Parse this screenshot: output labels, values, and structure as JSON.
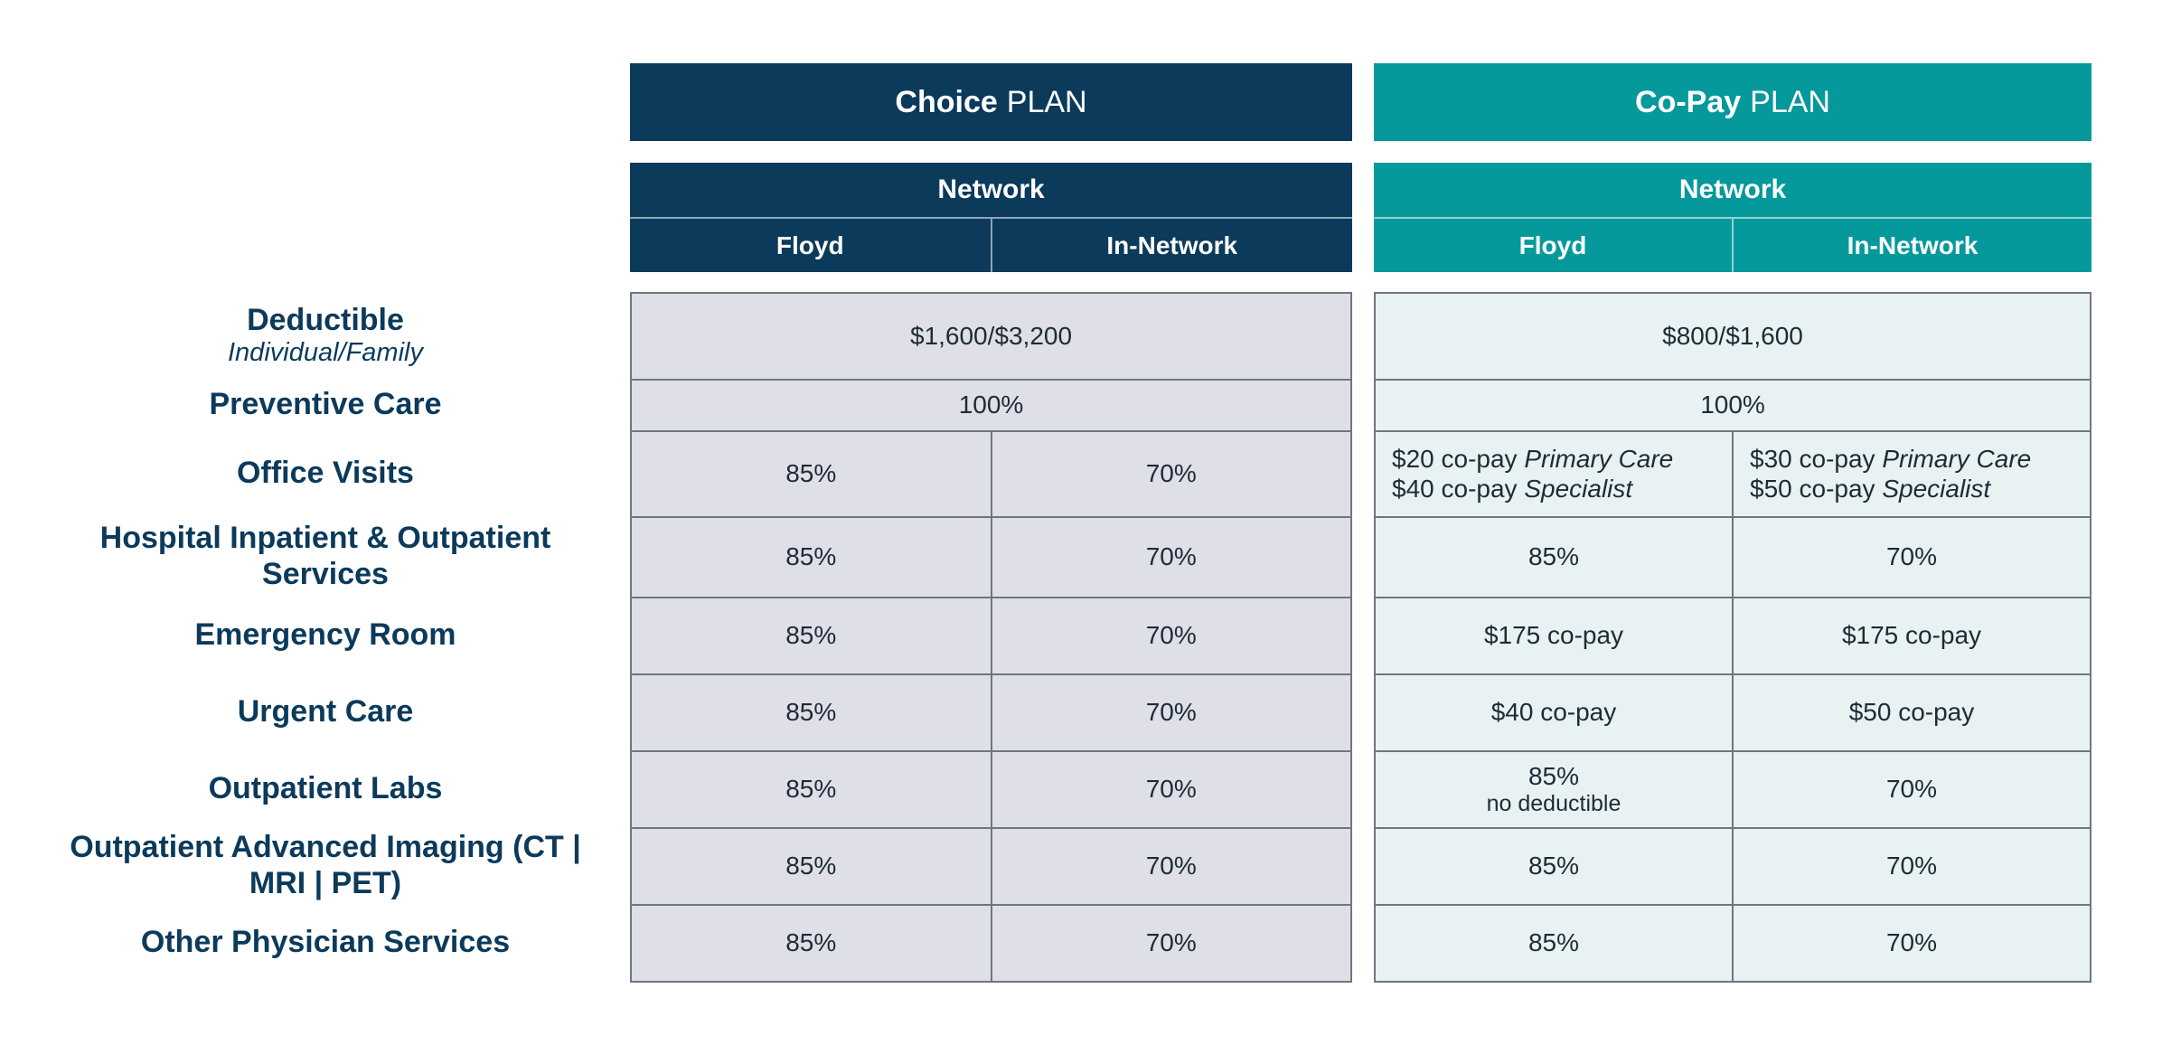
{
  "plans": [
    {
      "name_bold": "Choice",
      "name_light": "PLAN",
      "color": "#0b3a5b",
      "network_label": "Network",
      "columns": [
        "Floyd",
        "In-Network"
      ]
    },
    {
      "name_bold": "Co-Pay",
      "name_light": "PLAN",
      "color": "#05999b",
      "network_label": "Network",
      "columns": [
        "Floyd",
        "In-Network"
      ]
    }
  ],
  "rows": [
    {
      "label": "Deductible",
      "sublabel": "Individual/Family"
    },
    {
      "label": "Preventive Care"
    },
    {
      "label": "Office Visits"
    },
    {
      "label": "Hospital Inpatient & Outpatient Services"
    },
    {
      "label": "Emergency Room"
    },
    {
      "label": "Urgent Care"
    },
    {
      "label": "Outpatient Labs"
    },
    {
      "label": "Outpatient Advanced Imaging (CT | MRI | PET)"
    },
    {
      "label": "Other Physician Services"
    }
  ],
  "choice": {
    "deductible": "$1,600/$3,200",
    "preventive": "100%",
    "office_visits": [
      "85%",
      "70%"
    ],
    "hospital": [
      "85%",
      "70%"
    ],
    "emergency": [
      "85%",
      "70%"
    ],
    "urgent": [
      "85%",
      "70%"
    ],
    "labs": [
      "85%",
      "70%"
    ],
    "imaging": [
      "85%",
      "70%"
    ],
    "other": [
      "85%",
      "70%"
    ]
  },
  "copay": {
    "deductible": "$800/$1,600",
    "preventive": "100%",
    "office_visits": [
      {
        "line1_amount": "$20 co-pay",
        "line1_type": "Primary Care",
        "line2_amount": "$40 co-pay",
        "line2_type": "Specialist"
      },
      {
        "line1_amount": "$30 co-pay",
        "line1_type": "Primary Care",
        "line2_amount": "$50 co-pay",
        "line2_type": "Specialist"
      }
    ],
    "hospital": [
      "85%",
      "70%"
    ],
    "emergency": [
      "$175 co-pay",
      "$175 co-pay"
    ],
    "urgent": [
      "$40 co-pay",
      "$50 co-pay"
    ],
    "labs": [
      {
        "value": "85%",
        "note": "no deductible"
      },
      {
        "value": "70%"
      }
    ],
    "imaging": [
      "85%",
      "70%"
    ],
    "other": [
      "85%",
      "70%"
    ]
  }
}
